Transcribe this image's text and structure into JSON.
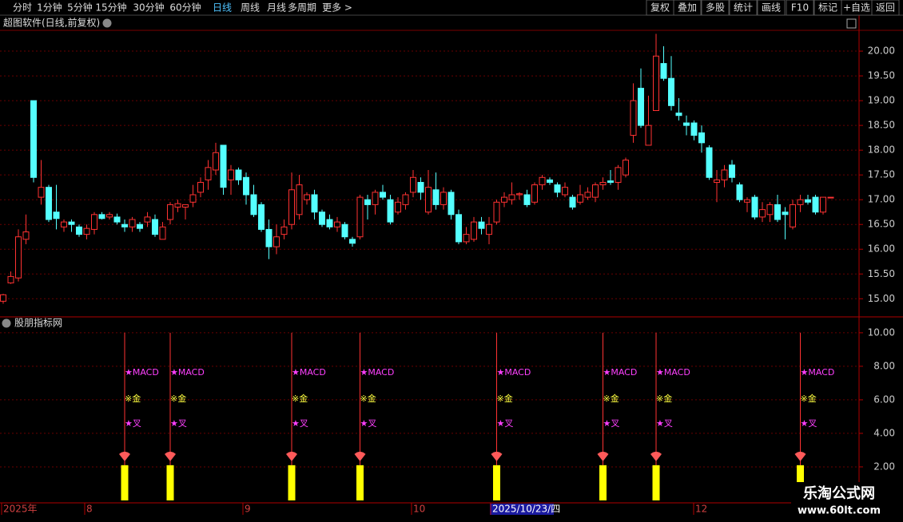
{
  "toolbar": {
    "periods": [
      "分时",
      "1分钟",
      "5分钟",
      "15分钟",
      "30分钟",
      "60分钟",
      "日线",
      "周线",
      "月线",
      "多周期",
      "更多 >"
    ],
    "tools": [
      "复权",
      "叠加",
      "多股",
      "统计",
      "画线",
      "F10",
      "标记",
      "+自选",
      "返回"
    ]
  },
  "chart_data": [
    {
      "type": "candlestick",
      "title": "超图软件(日线,前复权)",
      "up_color": "#ff3232",
      "down_color": "#54ffff",
      "grid": true,
      "ylim": [
        14.65,
        20.42
      ],
      "yticks": [
        {
          "value": 15,
          "label": "15.00"
        },
        {
          "value": 15.5,
          "label": "15.50"
        },
        {
          "value": 16,
          "label": "16.00"
        },
        {
          "value": 16.5,
          "label": "16.50"
        },
        {
          "value": 17,
          "label": "17.00"
        },
        {
          "value": 17.5,
          "label": "17.50"
        },
        {
          "value": 18,
          "label": "18.00"
        },
        {
          "value": 18.5,
          "label": "18.50"
        },
        {
          "value": 19,
          "label": "19.00"
        },
        {
          "value": 19.5,
          "label": "19.50"
        },
        {
          "value": 20,
          "label": "20.00"
        }
      ],
      "ohlc": [
        [
          14.95,
          15.1,
          14.9,
          15.08
        ],
        [
          15.32,
          15.55,
          15.3,
          15.45
        ],
        [
          15.42,
          16.4,
          15.35,
          16.25
        ],
        [
          16.2,
          16.7,
          16.1,
          16.35
        ],
        [
          19.0,
          19.0,
          17.35,
          17.45
        ],
        [
          17.05,
          17.8,
          16.9,
          17.25
        ],
        [
          17.25,
          17.3,
          16.55,
          16.6
        ],
        [
          16.75,
          17.3,
          16.4,
          16.62
        ],
        [
          16.45,
          16.6,
          16.35,
          16.55
        ],
        [
          16.55,
          16.6,
          16.35,
          16.5
        ],
        [
          16.45,
          16.5,
          16.25,
          16.3
        ],
        [
          16.3,
          16.5,
          16.2,
          16.42
        ],
        [
          16.4,
          16.75,
          16.3,
          16.7
        ],
        [
          16.7,
          16.75,
          16.6,
          16.62
        ],
        [
          16.65,
          16.75,
          16.6,
          16.7
        ],
        [
          16.65,
          16.72,
          16.5,
          16.55
        ],
        [
          16.5,
          16.6,
          16.35,
          16.45
        ],
        [
          16.45,
          16.65,
          16.35,
          16.6
        ],
        [
          16.5,
          16.55,
          16.35,
          16.42
        ],
        [
          16.55,
          16.75,
          16.45,
          16.65
        ],
        [
          16.6,
          16.7,
          16.25,
          16.3
        ],
        [
          16.2,
          16.55,
          16.2,
          16.45
        ],
        [
          16.6,
          16.95,
          16.5,
          16.9
        ],
        [
          16.85,
          17.0,
          16.75,
          16.92
        ],
        [
          16.85,
          16.9,
          16.6,
          16.9
        ],
        [
          16.95,
          17.3,
          16.85,
          17.1
        ],
        [
          17.15,
          17.45,
          17.05,
          17.35
        ],
        [
          17.4,
          17.8,
          17.2,
          17.65
        ],
        [
          17.6,
          18.15,
          17.5,
          17.95
        ],
        [
          18.1,
          18.1,
          17.1,
          17.25
        ],
        [
          17.4,
          17.7,
          17.1,
          17.6
        ],
        [
          17.6,
          17.65,
          17.3,
          17.4
        ],
        [
          17.45,
          17.55,
          16.9,
          17.1
        ],
        [
          17.1,
          17.3,
          16.65,
          16.7
        ],
        [
          16.9,
          16.95,
          16.35,
          16.4
        ],
        [
          16.4,
          16.6,
          15.8,
          16.05
        ],
        [
          16.05,
          16.5,
          15.9,
          16.25
        ],
        [
          16.3,
          16.6,
          16.2,
          16.45
        ],
        [
          16.5,
          17.55,
          16.4,
          17.2
        ],
        [
          16.7,
          17.5,
          16.6,
          17.3
        ],
        [
          17.0,
          17.15,
          16.9,
          17.1
        ],
        [
          17.1,
          17.2,
          16.6,
          16.75
        ],
        [
          16.75,
          16.8,
          16.45,
          16.5
        ],
        [
          16.6,
          16.7,
          16.4,
          16.45
        ],
        [
          16.45,
          16.65,
          16.35,
          16.55
        ],
        [
          16.5,
          16.55,
          16.2,
          16.25
        ],
        [
          16.2,
          16.25,
          16.05,
          16.12
        ],
        [
          16.25,
          17.1,
          16.2,
          17.05
        ],
        [
          17.0,
          17.1,
          16.6,
          16.9
        ],
        [
          16.9,
          17.2,
          16.7,
          17.15
        ],
        [
          17.15,
          17.3,
          17.0,
          17.05
        ],
        [
          17.0,
          17.1,
          16.5,
          16.55
        ],
        [
          16.75,
          17.05,
          16.7,
          16.95
        ],
        [
          16.9,
          17.15,
          16.8,
          17.1
        ],
        [
          17.15,
          17.6,
          17.05,
          17.45
        ],
        [
          17.35,
          17.45,
          17.0,
          17.15
        ],
        [
          16.75,
          17.6,
          16.7,
          17.25
        ],
        [
          17.2,
          17.55,
          16.8,
          16.9
        ],
        [
          16.9,
          17.25,
          16.8,
          17.15
        ],
        [
          17.15,
          17.2,
          16.6,
          16.7
        ],
        [
          16.7,
          16.8,
          16.1,
          16.15
        ],
        [
          16.15,
          16.45,
          16.1,
          16.3
        ],
        [
          16.2,
          16.65,
          16.15,
          16.55
        ],
        [
          16.55,
          16.65,
          16.3,
          16.42
        ],
        [
          16.3,
          16.65,
          16.1,
          16.5
        ],
        [
          16.55,
          17.0,
          16.5,
          16.95
        ],
        [
          16.95,
          17.15,
          16.85,
          17.05
        ],
        [
          17.0,
          17.35,
          16.9,
          17.1
        ],
        [
          17.1,
          17.15,
          17.0,
          17.12
        ],
        [
          17.1,
          17.2,
          16.85,
          16.9
        ],
        [
          16.95,
          17.35,
          16.9,
          17.3
        ],
        [
          17.3,
          17.5,
          17.2,
          17.45
        ],
        [
          17.4,
          17.45,
          17.3,
          17.35
        ],
        [
          17.3,
          17.35,
          17.05,
          17.15
        ],
        [
          17.1,
          17.35,
          17.05,
          17.25
        ],
        [
          17.05,
          17.1,
          16.8,
          16.85
        ],
        [
          16.95,
          17.3,
          16.9,
          17.1
        ],
        [
          17.05,
          17.25,
          17.0,
          17.15
        ],
        [
          17.05,
          17.35,
          16.95,
          17.3
        ],
        [
          17.3,
          17.45,
          17.2,
          17.35
        ],
        [
          17.38,
          17.6,
          17.3,
          17.35
        ],
        [
          17.35,
          17.7,
          17.2,
          17.65
        ],
        [
          17.5,
          17.85,
          17.45,
          17.8
        ],
        [
          18.3,
          19.35,
          18.15,
          19.0
        ],
        [
          19.25,
          19.65,
          18.45,
          18.5
        ],
        [
          18.1,
          19.1,
          18.1,
          18.5
        ],
        [
          18.8,
          20.35,
          18.8,
          19.9
        ],
        [
          19.75,
          20.1,
          19.4,
          19.45
        ],
        [
          19.45,
          19.9,
          18.8,
          18.9
        ],
        [
          18.75,
          19.05,
          18.6,
          18.7
        ],
        [
          18.55,
          18.7,
          18.3,
          18.5
        ],
        [
          18.55,
          18.6,
          18.2,
          18.3
        ],
        [
          18.35,
          18.5,
          17.95,
          18.15
        ],
        [
          18.05,
          18.1,
          17.4,
          17.45
        ],
        [
          17.35,
          17.6,
          16.95,
          17.4
        ],
        [
          17.4,
          17.7,
          17.25,
          17.6
        ],
        [
          17.7,
          17.8,
          17.35,
          17.45
        ],
        [
          17.3,
          17.35,
          16.95,
          17.0
        ],
        [
          16.95,
          17.05,
          16.75,
          17.0
        ],
        [
          17.05,
          17.1,
          16.6,
          16.65
        ],
        [
          16.65,
          16.95,
          16.55,
          16.8
        ],
        [
          16.7,
          16.95,
          16.55,
          16.9
        ],
        [
          16.9,
          17.1,
          16.55,
          16.6
        ],
        [
          16.75,
          16.85,
          16.2,
          16.7
        ],
        [
          16.45,
          17.0,
          16.4,
          16.9
        ],
        [
          16.9,
          17.1,
          16.75,
          17.0
        ],
        [
          17.0,
          17.1,
          16.9,
          16.95
        ],
        [
          17.05,
          17.1,
          16.7,
          16.75
        ],
        [
          16.75,
          17.05,
          16.7,
          17.05
        ],
        [
          17.05,
          17.05,
          17.05,
          17.05
        ]
      ]
    },
    {
      "type": "signal",
      "title": "股朋指标网",
      "bar_color": "#ffff00",
      "line_color": "#ff3232",
      "grid": true,
      "signal_labels": [
        "★MACD",
        "※金",
        "★叉"
      ],
      "line_top": 10,
      "ylim": [
        -0.05,
        10.9
      ],
      "yticks": [
        {
          "value": 2,
          "label": "2.00"
        },
        {
          "value": 4,
          "label": "4.00"
        },
        {
          "value": 6,
          "label": "6.00"
        },
        {
          "value": 8,
          "label": "8.00"
        },
        {
          "value": 10,
          "label": "10.00"
        }
      ],
      "values": [
        null,
        null,
        null,
        null,
        null,
        null,
        null,
        null,
        null,
        null,
        null,
        null,
        null,
        null,
        null,
        null,
        2.1,
        null,
        null,
        null,
        null,
        null,
        2.1,
        null,
        null,
        null,
        null,
        null,
        null,
        null,
        null,
        null,
        null,
        null,
        null,
        null,
        null,
        null,
        2.1,
        null,
        null,
        null,
        null,
        null,
        null,
        null,
        null,
        2.1,
        null,
        null,
        null,
        null,
        null,
        null,
        null,
        null,
        null,
        null,
        null,
        null,
        null,
        null,
        null,
        null,
        null,
        2.1,
        null,
        null,
        null,
        null,
        null,
        null,
        null,
        null,
        null,
        null,
        null,
        null,
        null,
        2.1,
        null,
        null,
        null,
        null,
        null,
        null,
        2.1,
        null,
        null,
        null,
        null,
        null,
        null,
        null,
        null,
        null,
        null,
        null,
        null,
        null,
        null,
        null,
        null,
        null,
        null,
        2.1,
        null,
        null,
        null,
        null,
        null,
        null,
        null,
        null
      ]
    }
  ],
  "date_axis": [
    "2025年",
    "8",
    "9",
    "10",
    "2025/10/23/四",
    "12"
  ],
  "watermark": {
    "name": "乐淘公式网",
    "url": "www.60lt.com"
  }
}
